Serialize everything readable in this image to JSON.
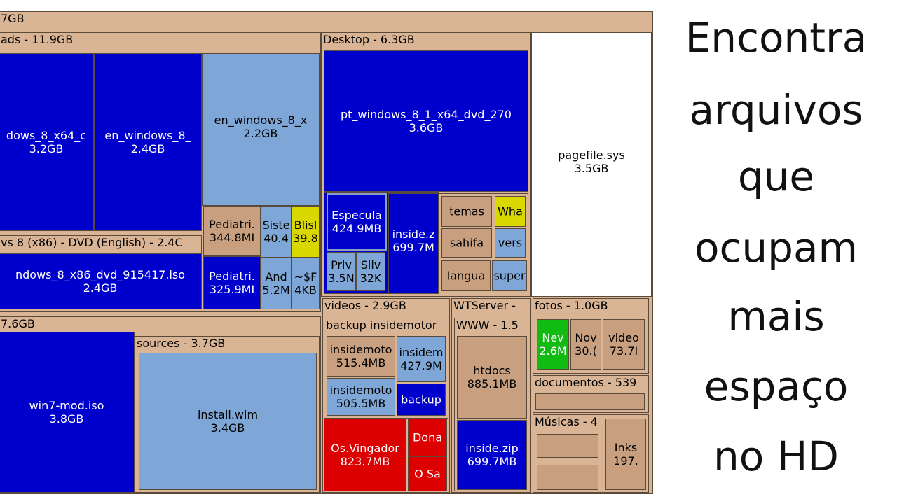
{
  "root": {
    "label": "7GB"
  },
  "downloads": {
    "header": "ads - 11.9GB",
    "win8_x64": {
      "name": "dows_8_x64_c",
      "size": "3.2GB"
    },
    "en_win8": {
      "name": "en_windows_8_",
      "size": "2.4GB"
    },
    "en_win8_x": {
      "name": "en_windows_8_x",
      "size": "2.2GB"
    },
    "pediatri1": {
      "name": "Pediatri.",
      "size": "344.8MI"
    },
    "sist": {
      "name": "Siste",
      "size": "40.4"
    },
    "blis": {
      "name": "Blisl",
      "size": "39.8"
    },
    "pediatri2": {
      "name": "Pediatri.",
      "size": "325.9MI"
    },
    "and": {
      "name": "And",
      "size": "5.2M"
    },
    "tmp": {
      "name": "~$F",
      "size": "4KB"
    },
    "dvd_group": {
      "header": "vs 8 (x86) - DVD (English) - 2.4C"
    },
    "win8_x86": {
      "name": "ndows_8_x86_dvd_915417.iso",
      "size": "2.4GB"
    }
  },
  "desktop": {
    "header": "Desktop - 6.3GB",
    "pt_win8": {
      "name": "pt_windows_8_1_x64_dvd_270",
      "size": "3.6GB"
    },
    "especula": {
      "name": "Especula",
      "size": "424.9MB"
    },
    "inside_zip": {
      "name": "inside.z",
      "size": "699.7M"
    },
    "priv": {
      "name": "Priv",
      "size": "3.5N"
    },
    "silv": {
      "name": "Silv",
      "size": "32K"
    },
    "temas": {
      "name": "temas"
    },
    "wha": {
      "name": "Wha"
    },
    "sahifa": {
      "name": "sahifa"
    },
    "vers": {
      "name": "vers"
    },
    "langua": {
      "name": "langua"
    },
    "super": {
      "name": "super"
    }
  },
  "pagefile": {
    "name": "pagefile.sys",
    "size": "3.5GB"
  },
  "bottom": {
    "header": "7.6GB",
    "win7": {
      "name": "win7-mod.iso",
      "size": "3.8GB"
    },
    "sources": {
      "header": "sources - 3.7GB"
    },
    "install": {
      "name": "install.wim",
      "size": "3.4GB"
    }
  },
  "videos": {
    "header": "videos - 2.9GB",
    "backup_group": {
      "header": "backup insidemotor"
    },
    "im1": {
      "name": "insidemoto",
      "size": "515.4MB"
    },
    "im2": {
      "name": "insidem",
      "size": "427.9M"
    },
    "im3": {
      "name": "insidemoto",
      "size": "505.5MB"
    },
    "backup": {
      "name": "backup"
    },
    "vingador": {
      "name": "Os.Vingador",
      "size": "823.7MB"
    },
    "dona": {
      "name": "Dona"
    },
    "osa": {
      "name": "O Sa"
    }
  },
  "wtserver": {
    "header": "WTServer -",
    "www": {
      "header": "WWW - 1.5"
    },
    "htdocs": {
      "name": "htdocs",
      "size": "885.1MB"
    },
    "inside_zip2": {
      "name": "inside.zip",
      "size": "699.7MB"
    }
  },
  "fotos": {
    "header": "fotos - 1.0GB",
    "nev": {
      "name": "Nev",
      "size": "2.6M"
    },
    "nov": {
      "name": "Nov",
      "size": "30.("
    },
    "video": {
      "name": "video",
      "size": "73.7I"
    }
  },
  "documentos": {
    "header": "documentos - 539"
  },
  "musicas": {
    "header": "Músicas - 4",
    "inks": {
      "name": "Inks",
      "size": "197."
    }
  },
  "slogan": {
    "lines": [
      "Encontra",
      "arquivos",
      "que",
      "ocupam",
      "mais",
      "espaço",
      "no HD"
    ]
  },
  "colors": {
    "folder": "#d9b595",
    "dark_blue": "#0000cc",
    "light_blue": "#7ea6d6",
    "red": "#dd0000",
    "green": "#11bb11",
    "yellow": "#d8d800"
  }
}
